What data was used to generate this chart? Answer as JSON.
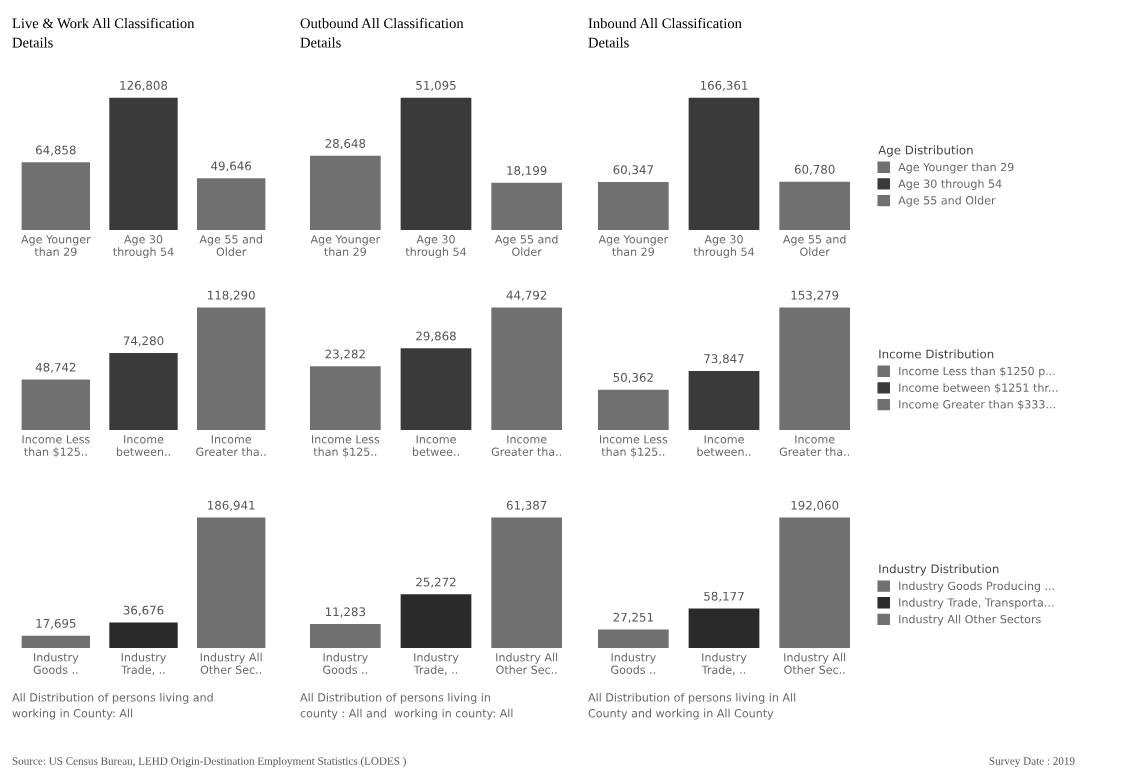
{
  "chart_data": [
    {
      "type": "bar",
      "title": "Live & Work All Classification\nDetails",
      "categories": [
        "Age Younger\nthan 29",
        "Age 30\nthrough 54",
        "Age 55 and\nOlder"
      ],
      "series": [
        {
          "color": "#707070",
          "values": [
            64858,
            null,
            null
          ],
          "value_labels": [
            "64,858",
            null,
            null
          ]
        },
        {
          "color": "#3a3a3a",
          "values": [
            null,
            126808,
            null
          ],
          "value_labels": [
            null,
            "126,808",
            null
          ]
        },
        {
          "color": "#707070",
          "values": [
            null,
            null,
            49646
          ],
          "value_labels": [
            null,
            null,
            "49,646"
          ]
        }
      ]
    },
    {
      "type": "bar",
      "title": "Outbound All Classification\nDetails",
      "categories": [
        "Age Younger\nthan 29",
        "Age 30\nthrough 54",
        "Age 55 and\nOlder"
      ],
      "series": [
        {
          "color": "#707070",
          "values": [
            28648,
            null,
            null
          ],
          "value_labels": [
            "28,648",
            null,
            null
          ]
        },
        {
          "color": "#3a3a3a",
          "values": [
            null,
            51095,
            null
          ],
          "value_labels": [
            null,
            "51,095",
            null
          ]
        },
        {
          "color": "#707070",
          "values": [
            null,
            null,
            18199
          ],
          "value_labels": [
            null,
            null,
            "18,199"
          ]
        }
      ]
    },
    {
      "type": "bar",
      "title": "Inbound All Classification\nDetails",
      "categories": [
        "Age Younger\nthan 29",
        "Age 30\nthrough 54",
        "Age 55 and\nOlder"
      ],
      "series": [
        {
          "name": "Age Younger than 29",
          "color": "#707070",
          "values": [
            60347,
            null,
            null
          ],
          "value_labels": [
            "60,347",
            null,
            null
          ]
        },
        {
          "name": "Age 30 through 54",
          "color": "#3a3a3a",
          "values": [
            null,
            166361,
            null
          ],
          "value_labels": [
            null,
            "166,361",
            null
          ]
        },
        {
          "name": "Age 55 and Older",
          "color": "#707070",
          "values": [
            null,
            null,
            60780
          ],
          "value_labels": [
            null,
            null,
            "60,780"
          ]
        }
      ],
      "legend": "right",
      "legend_title": "Age Distribution"
    },
    {
      "type": "bar",
      "categories": [
        "Income Less\nthan $125..",
        "Income\nbetween..",
        "Income\nGreater tha.."
      ],
      "series": [
        {
          "color": "#707070",
          "values": [
            48742,
            null,
            null
          ],
          "value_labels": [
            "48,742",
            null,
            null
          ]
        },
        {
          "color": "#3a3a3a",
          "values": [
            null,
            74280,
            null
          ],
          "value_labels": [
            null,
            "74,280",
            null
          ]
        },
        {
          "color": "#707070",
          "values": [
            null,
            null,
            118290
          ],
          "value_labels": [
            null,
            null,
            "118,290"
          ]
        }
      ]
    },
    {
      "type": "bar",
      "categories": [
        "Income Less\nthan $125..",
        "Income\nbetwee..",
        "Income\nGreater tha.."
      ],
      "series": [
        {
          "color": "#707070",
          "values": [
            23282,
            null,
            null
          ],
          "value_labels": [
            "23,282",
            null,
            null
          ]
        },
        {
          "color": "#3a3a3a",
          "values": [
            null,
            29868,
            null
          ],
          "value_labels": [
            null,
            "29,868",
            null
          ]
        },
        {
          "color": "#707070",
          "values": [
            null,
            null,
            44792
          ],
          "value_labels": [
            null,
            null,
            "44,792"
          ]
        }
      ]
    },
    {
      "type": "bar",
      "categories": [
        "Income Less\nthan $125..",
        "Income\nbetween..",
        "Income\nGreater tha.."
      ],
      "series": [
        {
          "name": "Income Less than $1250 p...",
          "color": "#707070",
          "values": [
            50362,
            null,
            null
          ],
          "value_labels": [
            "50,362",
            null,
            null
          ]
        },
        {
          "name": "Income between $1251 thr...",
          "color": "#3a3a3a",
          "values": [
            null,
            73847,
            null
          ],
          "value_labels": [
            null,
            "73,847",
            null
          ]
        },
        {
          "name": "Income Greater than $333...",
          "color": "#707070",
          "values": [
            null,
            null,
            153279
          ],
          "value_labels": [
            null,
            null,
            "153,279"
          ]
        }
      ],
      "legend": "right",
      "legend_title": "Income Distribution"
    },
    {
      "type": "bar",
      "categories": [
        "Industry\nGoods ..",
        "Industry\nTrade, ..",
        "Industry All\nOther Sec.."
      ],
      "series": [
        {
          "color": "#707070",
          "values": [
            17695,
            null,
            null
          ],
          "value_labels": [
            "17,695",
            null,
            null
          ]
        },
        {
          "color": "#2a2a2a",
          "values": [
            null,
            36676,
            null
          ],
          "value_labels": [
            null,
            "36,676",
            null
          ]
        },
        {
          "color": "#707070",
          "values": [
            null,
            null,
            186941
          ],
          "value_labels": [
            null,
            null,
            "186,941"
          ]
        }
      ],
      "annotations": [
        "All Distribution of persons living and\nworking in County: All",
        "Source: US Census Bureau, LEHD Origin-Destination Employment Statistics (LODES )"
      ]
    },
    {
      "type": "bar",
      "categories": [
        "Industry\nGoods ..",
        "Industry\nTrade, ..",
        "Industry All\nOther Sec.."
      ],
      "series": [
        {
          "color": "#707070",
          "values": [
            11283,
            null,
            null
          ],
          "value_labels": [
            "11,283",
            null,
            null
          ]
        },
        {
          "color": "#2a2a2a",
          "values": [
            null,
            25272,
            null
          ],
          "value_labels": [
            null,
            "25,272",
            null
          ]
        },
        {
          "color": "#707070",
          "values": [
            null,
            null,
            61387
          ],
          "value_labels": [
            null,
            null,
            "61,387"
          ]
        }
      ],
      "annotations": [
        "All Distribution of persons living in\ncounty : All and  working in county: All"
      ]
    },
    {
      "type": "bar",
      "categories": [
        "Industry\nGoods ..",
        "Industry\nTrade, ..",
        "Industry All\nOther Sec.."
      ],
      "series": [
        {
          "name": "Industry Goods Producing ...",
          "color": "#707070",
          "values": [
            27251,
            null,
            null
          ],
          "value_labels": [
            "27,251",
            null,
            null
          ]
        },
        {
          "name": "Industry Trade, Transporta...",
          "color": "#2a2a2a",
          "values": [
            null,
            58177,
            null
          ],
          "value_labels": [
            null,
            "58,177",
            null
          ]
        },
        {
          "name": "Industry All Other Sectors",
          "color": "#707070",
          "values": [
            null,
            null,
            192060
          ],
          "value_labels": [
            null,
            null,
            "192,060"
          ]
        }
      ],
      "legend": "right",
      "legend_title": "Industry Distribution",
      "annotations": [
        "All Distribution of persons living in All\nCounty and working in All County",
        "Survey Date : 2019"
      ]
    }
  ]
}
